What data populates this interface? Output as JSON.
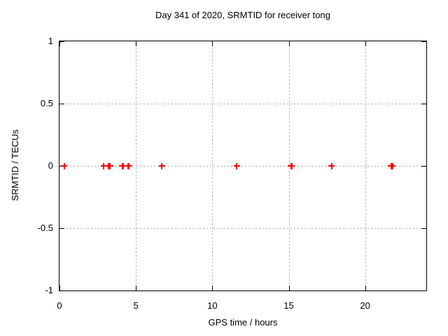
{
  "chart_data": {
    "type": "scatter",
    "title": "Day 341 of 2020, SRMTID for receiver tong",
    "xlabel": "GPS time / hours",
    "ylabel": "SRMTID / TECUs",
    "xlim": [
      0,
      24
    ],
    "ylim": [
      -1,
      1
    ],
    "xticks": [
      0,
      5,
      10,
      15,
      20
    ],
    "xtick_labels": [
      "0",
      "5",
      "10",
      "15",
      "20"
    ],
    "yticks": [
      -1,
      -0.5,
      0,
      0.5,
      1
    ],
    "ytick_labels": [
      "-1",
      "-0.5",
      "0",
      "0.5",
      "1"
    ],
    "grid": true,
    "grid_style": "dotted",
    "legend_position": "none",
    "marker": "plus",
    "marker_color": "#ff0000",
    "grid_color": "#a8a8a8",
    "axis_color": "#000000",
    "background_color": "#ffffff",
    "series": [
      {
        "name": "SRMTID",
        "x": [
          0.3,
          2.9,
          3.2,
          3.3,
          4.1,
          4.15,
          4.5,
          4.55,
          6.7,
          11.6,
          15.15,
          15.2,
          17.8,
          21.7,
          21.8
        ],
        "y": [
          0,
          0,
          0,
          0,
          0,
          0,
          0,
          0,
          0,
          0,
          0,
          0,
          0,
          0,
          0
        ]
      }
    ]
  }
}
